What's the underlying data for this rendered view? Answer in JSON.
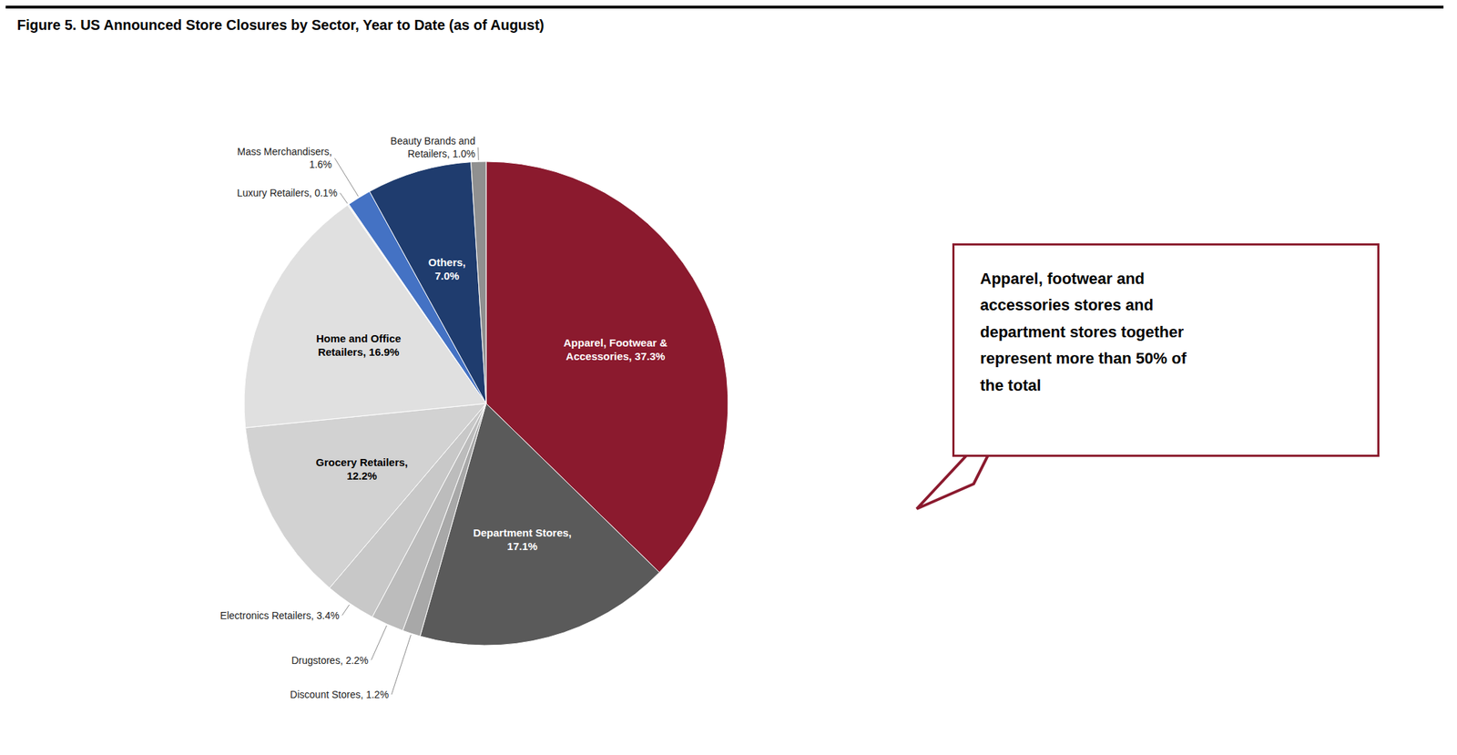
{
  "chart_data": {
    "type": "pie",
    "title": "Figure 5. US Announced Store Closures by Sector, Year to Date (as of August)",
    "categories": [
      "Apparel, Footwear &\nAccessories, 37.3%",
      "Department Stores,\n17.1%",
      "Discount Stores, 1.2%",
      "Drugstores, 2.2%",
      "Electronics Retailers, 3.4%",
      "Grocery Retailers,\n12.2%",
      "Home and Office\nRetailers, 16.9%",
      "Luxury Retailers, 0.1%",
      "Mass Merchandisers,\n1.6%",
      "Others,\n7.0%",
      "Beauty Brands and\nRetailers, 1.0%"
    ],
    "values": [
      37.3,
      17.1,
      1.2,
      2.2,
      3.4,
      12.2,
      16.9,
      0.1,
      1.6,
      7.0,
      1.0
    ],
    "colors": [
      "#8B1A2E",
      "#5A5A5A",
      "#A8A8A8",
      "#BCBCBC",
      "#C8C8C8",
      "#D2D2D2",
      "#E0E0E0",
      "#EEEEEE",
      "#4472C4",
      "#1F3C6E",
      "#909090"
    ],
    "annotation": "Apparel, footwear and\naccessories stores and\ndepartment stores together\nrepresent more than 50% of\nthe total"
  }
}
